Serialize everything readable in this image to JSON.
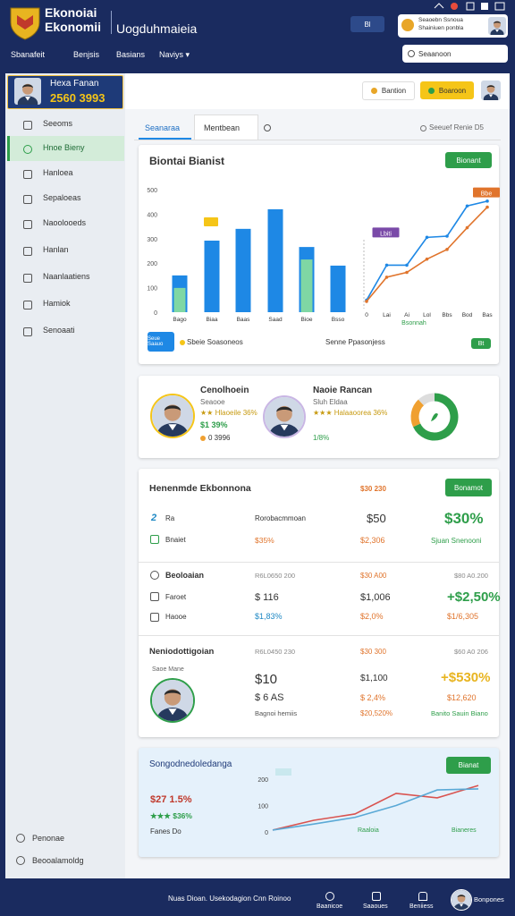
{
  "header": {
    "title": [
      "Ekonoiai",
      "Ekonomii"
    ],
    "subtitle": "Uogduhmaieia",
    "button": "Bl",
    "profile": [
      "Seaoebn Ssnoua",
      "Shainiuen ponbla"
    ],
    "nav": [
      "Sbanafeit",
      "Benjsis",
      "Basians",
      "Naviys ▾"
    ],
    "search": "Seaanoon"
  },
  "sidebar": {
    "user": {
      "name": "Hexa Fanan",
      "value": "2560 3993"
    },
    "menu": [
      "Seeoms",
      "Hnoe Bieny",
      "Hanloea",
      "Sepaloeas",
      "Naoolooeds",
      "Hanlan",
      "Naanlaatiens",
      "Hamiok",
      "Senoaati"
    ],
    "footer": [
      "Penonae",
      "Beooalamoldg"
    ]
  },
  "topbar": {
    "buttons": [
      "Bantion",
      "Boaroon"
    ]
  },
  "tabs": {
    "items": [
      "Seanaraa",
      "Mentbean"
    ],
    "search": "Seeuef Renie D5"
  },
  "main_chart": {
    "type": "bar",
    "title": "Biontai Bianist",
    "button": "Bionant",
    "categories": [
      "Bago",
      "Biaa",
      "Baas",
      "Saad",
      "Bioe",
      "Bsso"
    ],
    "series": [
      {
        "name": "Seue Saauo",
        "color": "#1e88e5",
        "values": [
          150,
          292,
          340,
          420,
          266,
          190
        ]
      },
      {
        "name": "Sbeie Soasoneos",
        "color": "#7fd7a4",
        "values": [
          99,
          null,
          null,
          null,
          215,
          null
        ]
      }
    ],
    "ylim": [
      0,
      500
    ],
    "yticks": [
      0,
      100,
      200,
      300,
      400,
      500
    ]
  },
  "line_chart": {
    "type": "line",
    "title": "Senne Ppasonjess",
    "xlabel": "Bsonnah",
    "categories": [
      "0",
      "Lai",
      "Ai",
      "Lol",
      "Bbs",
      "Bod",
      "Bas"
    ],
    "series": [
      {
        "name": "Lbiti",
        "color": "#1e88e5",
        "values": [
          7,
          36,
          36,
          59,
          60,
          85,
          89
        ]
      },
      {
        "name": "Bbe",
        "color": "#e0742c",
        "values": [
          6,
          26,
          30,
          41,
          49,
          67,
          84
        ]
      }
    ],
    "ylim": [
      0,
      100
    ]
  },
  "legend_badge": "Bt",
  "profiles": [
    {
      "name": "Cenolhoein",
      "role": "Seaooe",
      "rating": "★★ Hlaoeile 36%",
      "stat1": "$1 39%",
      "stat2": "0 3996"
    },
    {
      "name": "Naoie Rancan",
      "role": "Sluh Eldaa",
      "rating": "★★★ Halaaoorea 36%",
      "stat1": "1/8%"
    }
  ],
  "donut": {
    "type": "pie",
    "values": [
      68,
      20,
      12
    ],
    "colors": [
      "#2e9e4a",
      "#f0a030",
      "#dddddd"
    ]
  },
  "table": {
    "title": "Henenmde Ekbonnona",
    "title_value": "$30 230",
    "button": "Bonamot",
    "rows": [
      [
        "2",
        "Ra",
        "Rorobacmmoan",
        "$50",
        "$30%"
      ],
      [
        "Bnaiet",
        "$35%",
        "$2,306",
        "Sjuan Snenooni"
      ]
    ],
    "sections": [
      {
        "title": "Beoloaian",
        "cols": [
          "R6L0650 200",
          "$30 A00",
          "$80 A0.200"
        ],
        "rows": [
          [
            "Faroet",
            "$ 116",
            "$1,006",
            "+$2,50%"
          ],
          [
            "Haooe",
            "$1,83%",
            "$2,0%",
            "$1/6,305"
          ]
        ]
      },
      {
        "title": "Neniodottigoian",
        "cols": [
          "R6L0450 230",
          "$30 300",
          "$60 A0 206"
        ],
        "caption": "Saoe Mane",
        "rows": [
          [
            "$10",
            "$1,100",
            "+$530%"
          ],
          [
            "$ 6 AS",
            "$ 2,4%",
            "$12,620"
          ],
          [
            "Bagnoi hemiis",
            "$20,520%",
            "Banito Sauin Biano"
          ]
        ]
      }
    ]
  },
  "summary": {
    "title": "Songodnedoledanga",
    "button": "Bianat",
    "value": "$27 1.5%",
    "rating": "★★★ $36%",
    "note": "Fanes Do",
    "notes": [
      "Raaloia",
      "Bianeres"
    ],
    "chart": {
      "type": "line",
      "categories": [
        null,
        null,
        null,
        null,
        null,
        null
      ],
      "series": [
        {
          "color": "#d9534f",
          "values": [
            7,
            44,
            68,
            146,
            129,
            176
          ]
        },
        {
          "color": "#5aa9d6",
          "values": [
            7,
            30,
            55,
            100,
            159,
            163
          ]
        }
      ],
      "ylim": [
        0,
        200
      ],
      "yticks": [
        0,
        100,
        200
      ]
    }
  },
  "footer": {
    "text": "Nuas Dioan. Usekodagion Cnn Roinoo",
    "items": [
      "Baanicoe",
      "Saaoues",
      "Beniiess",
      "Bonpones"
    ]
  }
}
